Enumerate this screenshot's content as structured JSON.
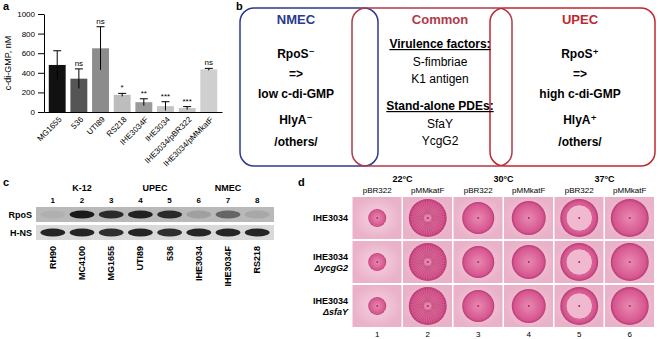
{
  "chart_data": {
    "type": "bar",
    "panel": "a",
    "y_label": "c-di-GMP, nM",
    "categories": [
      "MG1655",
      "536",
      "UTI89",
      "RS218",
      "IHE3034F",
      "IHE3034",
      "IHE3034/pBR322",
      "IHE3034/pMMkatF"
    ],
    "values": [
      480,
      340,
      650,
      175,
      100,
      60,
      40,
      435
    ],
    "errors": [
      145,
      100,
      220,
      15,
      35,
      45,
      15,
      10
    ],
    "annotations": [
      "",
      "ns",
      "ns",
      "*",
      "**",
      "***",
      "***",
      "ns"
    ],
    "colors": [
      "#111111",
      "#555555",
      "#8c8c8c",
      "#bdbdbd",
      "#9a9a9a",
      "#c4c4c4",
      "#c4c4c4",
      "#cfcfcf"
    ],
    "ylim": [
      0,
      1000
    ],
    "yticks": [
      0,
      200,
      400,
      600,
      800,
      1000
    ]
  },
  "diagram": {
    "panel": "b",
    "boxes": [
      {
        "title": "NMEC",
        "color": "#2b3990",
        "lines": [
          "RpoS⁻",
          "=>",
          "low c-di-GMP",
          "HlyA⁻",
          "/others/"
        ]
      },
      {
        "title": "Common",
        "color": "#b03a48",
        "sections": [
          {
            "heading": "Virulence factors:",
            "items": [
              "S-fimbriae",
              "K1 antigen"
            ]
          },
          {
            "heading": "Stand-alone PDEs:",
            "items": [
              "SfaY",
              "YcgG2"
            ]
          }
        ]
      },
      {
        "title": "UPEC",
        "color": "#c1272d",
        "lines": [
          "RpoS⁺",
          "=>",
          "high c-di-GMP",
          "HlyA⁺",
          "/others/"
        ]
      }
    ]
  },
  "blot": {
    "panel": "c",
    "groups": [
      {
        "label": "K-12",
        "lanes": [
          1,
          2,
          3
        ]
      },
      {
        "label": "UPEC",
        "lanes": [
          4,
          5
        ]
      },
      {
        "label": "NMEC",
        "lanes": [
          6,
          7,
          8
        ]
      }
    ],
    "lanes": [
      1,
      2,
      3,
      4,
      5,
      6,
      7,
      8
    ],
    "strains": [
      "RH90",
      "MC4100",
      "MG1655",
      "UTI89",
      "536",
      "IHE3034",
      "IHE3034F",
      "RS218"
    ],
    "rows": [
      {
        "label": "RpoS",
        "intensity": [
          0.05,
          0.95,
          0.85,
          0.9,
          0.85,
          0.15,
          0.5,
          0.1
        ]
      },
      {
        "label": "H-NS",
        "intensity": [
          0.9,
          0.9,
          0.85,
          0.9,
          0.85,
          0.9,
          0.9,
          0.9
        ]
      }
    ]
  },
  "plates": {
    "panel": "d",
    "temperatures": [
      "22°C",
      "30°C",
      "37°C"
    ],
    "plasmids": [
      "pBR322",
      "pMMkatF"
    ],
    "strains": [
      {
        "name": "IHE3034"
      },
      {
        "name": "IHE3034",
        "mutation": "ΔycgG2"
      },
      {
        "name": "IHE3034",
        "mutation": "ΔsfaY"
      }
    ],
    "columns": [
      1,
      2,
      3,
      4,
      5,
      6
    ]
  }
}
